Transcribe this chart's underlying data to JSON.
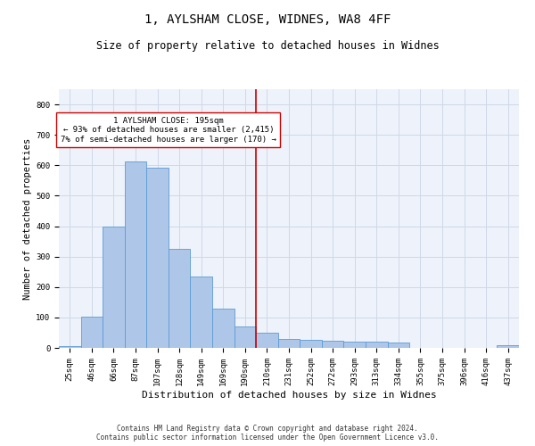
{
  "title1": "1, AYLSHAM CLOSE, WIDNES, WA8 4FF",
  "title2": "Size of property relative to detached houses in Widnes",
  "xlabel": "Distribution of detached houses by size in Widnes",
  "ylabel": "Number of detached properties",
  "footnote": "Contains HM Land Registry data © Crown copyright and database right 2024.\nContains public sector information licensed under the Open Government Licence v3.0.",
  "categories": [
    "25sqm",
    "46sqm",
    "66sqm",
    "87sqm",
    "107sqm",
    "128sqm",
    "149sqm",
    "169sqm",
    "190sqm",
    "210sqm",
    "231sqm",
    "252sqm",
    "272sqm",
    "293sqm",
    "313sqm",
    "334sqm",
    "355sqm",
    "375sqm",
    "396sqm",
    "416sqm",
    "437sqm"
  ],
  "values": [
    5,
    103,
    400,
    614,
    591,
    325,
    234,
    128,
    70,
    50,
    30,
    25,
    22,
    20,
    20,
    18,
    0,
    0,
    0,
    0,
    8
  ],
  "bar_color": "#aec6e8",
  "bar_edge_color": "#5b9bd5",
  "grid_color": "#d0d8e8",
  "background_color": "#eef2fa",
  "vline_color": "#cc0000",
  "annotation_text": "1 AYLSHAM CLOSE: 195sqm\n← 93% of detached houses are smaller (2,415)\n7% of semi-detached houses are larger (170) →",
  "annotation_box_color": "#ffffff",
  "annotation_box_edge": "#cc0000",
  "ylim": [
    0,
    850
  ],
  "yticks": [
    0,
    100,
    200,
    300,
    400,
    500,
    600,
    700,
    800
  ],
  "title1_fontsize": 10,
  "title2_fontsize": 8.5,
  "xlabel_fontsize": 8,
  "ylabel_fontsize": 7.5,
  "tick_fontsize": 6.5,
  "annot_fontsize": 6.5,
  "footnote_fontsize": 5.5
}
